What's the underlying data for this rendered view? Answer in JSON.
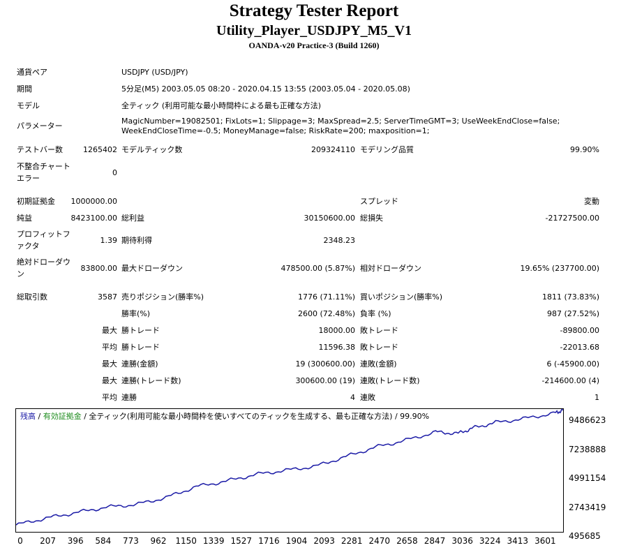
{
  "header": {
    "title": "Strategy Tester Report",
    "expert": "Utility_Player_USDJPY_M5_V1",
    "server": "OANDA-v20 Practice-3 (Build 1260)"
  },
  "info": {
    "pair_label": "通貨ペア",
    "pair_value": "USDJPY (USD/JPY)",
    "period_label": "期間",
    "period_value": "5分足(M5) 2003.05.05 08:20 - 2020.04.15 13:55 (2003.05.04 - 2020.05.08)",
    "model_label": "モデル",
    "model_value": "全ティック (利用可能な最小時間枠による最も正確な方法)",
    "params_label": "パラメーター",
    "params_value": "MagicNumber=19082501; FixLots=1; Slippage=3; MaxSpread=2.5; ServerTimeGMT=3; UseWeekEndClose=false; WeekEndCloseTime=-0.5; MoneyManage=false; RiskRate=200; maxposition=1;"
  },
  "bars": {
    "bars_label": "テストバー数",
    "bars_value": "1265402",
    "ticks_label": "モデルティック数",
    "ticks_value": "209324110",
    "quality_label": "モデリング品質",
    "quality_value": "99.90%",
    "mismatch_label_1": "不整合チャート",
    "mismatch_label_2": "エラー",
    "mismatch_value": "0"
  },
  "stats": {
    "deposit_label": "初期証拠金",
    "deposit_value": "1000000.00",
    "spread_label": "スプレッド",
    "spread_value": "変動",
    "net_label": "純益",
    "net_value": "8423100.00",
    "gross_profit_label": "総利益",
    "gross_profit_value": "30150600.00",
    "gross_loss_label": "総損失",
    "gross_loss_value": "-21727500.00",
    "pf_label_1": "プロフィットフ",
    "pf_label_2": "ァクタ",
    "pf_value": "1.39",
    "payoff_label": "期待利得",
    "payoff_value": "2348.23",
    "abs_dd_label_1": "絶対ドローダウ",
    "abs_dd_label_2": "ン",
    "abs_dd_value": "83800.00",
    "max_dd_label": "最大ドローダウン",
    "max_dd_value": "478500.00 (5.87%)",
    "rel_dd_label": "相対ドローダウン",
    "rel_dd_value": "19.65% (237700.00)"
  },
  "trades": {
    "total_label": "総取引数",
    "total_value": "3587",
    "short_label": "売りポジション(勝率%)",
    "short_value": "1776 (71.11%)",
    "long_label": "買いポジション(勝率%)",
    "long_value": "1811 (73.83%)",
    "win_label": "勝率(%)",
    "win_value": "2600 (72.48%)",
    "loss_label": "負率 (%)",
    "loss_value": "987 (27.52%)",
    "max_label": "最大",
    "avg_label": "平均",
    "max_win_label": "勝トレード",
    "max_win_value": "18000.00",
    "max_loss_label": "敗トレード",
    "max_loss_value": "-89800.00",
    "avg_win_label": "勝トレード",
    "avg_win_value": "11596.38",
    "avg_loss_label": "敗トレード",
    "avg_loss_value": "-22013.68",
    "max_cons_win_label": "連勝(金額)",
    "max_cons_win_value": "19 (300600.00)",
    "max_cons_loss_label": "連敗(金額)",
    "max_cons_loss_value": "6 (-45900.00)",
    "max_cons_profit_label": "連勝(トレード数)",
    "max_cons_profit_value": "300600.00 (19)",
    "max_cons_lossamt_label": "連敗(トレード数)",
    "max_cons_lossamt_value": "-214600.00 (4)",
    "avg_cons_win_label": "連勝",
    "avg_cons_win_value": "4",
    "avg_cons_loss_label": "連敗",
    "avg_cons_loss_value": "1"
  },
  "chart_caption": {
    "balance": "残高",
    "sep1": " / ",
    "equity": "有効証拠金",
    "rest": " / 全ティック(利用可能な最小時間枠を使いすべてのティックを生成する、最も正確な方法) / 99.90%"
  },
  "colors": {
    "balance": "#1a1aa6",
    "equity": "#1e8c1e"
  },
  "chart_data": {
    "type": "line",
    "series": [
      {
        "name": "残高",
        "x": [
          0,
          200,
          400,
          600,
          800,
          1000,
          1200,
          1400,
          1600,
          1800,
          2000,
          2200,
          2400,
          2600,
          2800,
          2950,
          3050,
          3200,
          3400,
          3600,
          3650
        ],
        "y": [
          1000000,
          1500000,
          1900000,
          2300000,
          2500000,
          3000000,
          3800000,
          4200000,
          4700000,
          5000000,
          5300000,
          6000000,
          6700000,
          7200000,
          7800000,
          7700000,
          8100000,
          8500000,
          8800000,
          9200000,
          9420000
        ]
      }
    ],
    "x_ticks": [
      "0",
      "207",
      "396",
      "584",
      "773",
      "962",
      "1150",
      "1339",
      "1527",
      "1716",
      "1904",
      "2093",
      "2281",
      "2470",
      "2658",
      "2847",
      "3036",
      "3224",
      "3413",
      "3601"
    ],
    "y_ticks": [
      "9486623",
      "7238888",
      "4991154",
      "2743419",
      "495685"
    ],
    "xlim": [
      0,
      3650
    ],
    "ylim": [
      495685,
      9486623
    ]
  }
}
